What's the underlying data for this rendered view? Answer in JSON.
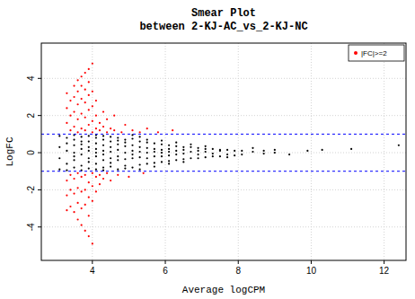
{
  "chart_data": {
    "type": "scatter",
    "title": "Smear Plot",
    "subtitle": "between 2-KJ-AC_vs_2-KJ-NC",
    "x_label": "Average logCPM",
    "y_label": "LogFC",
    "xlim": [
      2.6,
      12.6
    ],
    "ylim": [
      -5.8,
      5.9
    ],
    "xticks": [
      4,
      6,
      8,
      10,
      12
    ],
    "yticks": [
      -4,
      -2,
      0,
      2,
      4
    ],
    "grid": true,
    "legend": "topright",
    "marker": "circle",
    "reference_lines": [
      1,
      -1
    ],
    "series": [
      {
        "color": "#000000",
        "x": [
          3.1,
          3.1,
          3.1,
          3.1,
          3.3,
          3.3,
          3.3,
          3.3,
          3.3,
          3.5,
          3.5,
          3.5,
          3.5,
          3.5,
          3.5,
          3.5,
          3.7,
          3.7,
          3.7,
          3.7,
          3.7,
          3.7,
          3.7,
          3.9,
          3.9,
          3.9,
          3.9,
          3.9,
          3.9,
          3.9,
          4.1,
          4.1,
          4.1,
          4.1,
          4.1,
          4.1,
          4.1,
          4.1,
          4.3,
          4.3,
          4.3,
          4.3,
          4.3,
          4.3,
          4.3,
          4.3,
          4.5,
          4.5,
          4.5,
          4.5,
          4.5,
          4.5,
          4.5,
          4.7,
          4.7,
          4.7,
          4.7,
          4.7,
          4.7,
          4.7,
          4.9,
          4.9,
          4.9,
          4.9,
          4.9,
          4.9,
          4.9,
          5.1,
          5.1,
          5.1,
          5.1,
          5.1,
          5.1,
          5.1,
          5.3,
          5.3,
          5.3,
          5.3,
          5.3,
          5.3,
          5.3,
          5.5,
          5.5,
          5.5,
          5.5,
          5.5,
          5.5,
          5.7,
          5.7,
          5.7,
          5.7,
          5.7,
          5.7,
          5.9,
          5.9,
          5.9,
          5.9,
          5.9,
          5.9,
          6.1,
          6.1,
          6.1,
          6.1,
          6.1,
          6.1,
          6.3,
          6.3,
          6.3,
          6.3,
          6.3,
          6.5,
          6.5,
          6.5,
          6.5,
          6.5,
          6.7,
          6.7,
          6.7,
          6.7,
          6.9,
          6.9,
          6.9,
          6.9,
          7.1,
          7.1,
          7.1,
          7.1,
          7.3,
          7.3,
          7.3,
          7.5,
          7.5,
          7.5,
          7.7,
          7.7,
          7.7,
          7.9,
          7.9,
          8.1,
          8.1,
          8.4,
          8.4,
          8.7,
          8.7,
          9.0,
          9.0,
          9.4,
          9.9,
          10.3,
          11.1,
          12.4
        ],
        "values": [
          0.9,
          -0.9,
          0.3,
          -0.3,
          0.8,
          -0.6,
          0.1,
          0.5,
          -0.95,
          0.7,
          -0.8,
          0.0,
          0.4,
          -0.4,
          0.95,
          -0.2,
          0.6,
          -0.7,
          0.2,
          -0.1,
          0.85,
          -0.95,
          0.45,
          0.9,
          -0.5,
          0.3,
          -0.3,
          0.1,
          -0.85,
          0.6,
          0.8,
          -0.9,
          0.5,
          -0.6,
          0.2,
          -0.2,
          0.0,
          0.95,
          0.7,
          -0.8,
          0.4,
          -0.4,
          0.1,
          -0.1,
          0.9,
          -0.95,
          0.85,
          -0.75,
          0.3,
          -0.3,
          0.6,
          -0.55,
          0.05,
          0.8,
          -0.9,
          0.45,
          -0.4,
          0.15,
          -0.2,
          0.65,
          0.7,
          -0.7,
          0.35,
          -0.35,
          0.0,
          0.55,
          -0.85,
          0.75,
          -0.8,
          0.4,
          -0.3,
          0.1,
          -0.1,
          0.95,
          0.6,
          -0.65,
          0.3,
          -0.25,
          0.05,
          0.85,
          -0.9,
          0.55,
          -0.6,
          0.25,
          -0.3,
          0.0,
          0.7,
          0.5,
          -0.55,
          0.2,
          -0.2,
          0.05,
          -0.75,
          0.45,
          -0.5,
          0.15,
          -0.2,
          0.0,
          0.65,
          0.4,
          -0.45,
          0.2,
          -0.15,
          0.05,
          -0.6,
          0.35,
          -0.4,
          0.1,
          -0.1,
          0.55,
          0.3,
          -0.35,
          0.15,
          -0.05,
          -0.5,
          0.3,
          -0.3,
          0.05,
          0.45,
          0.25,
          -0.3,
          0.1,
          -0.1,
          0.2,
          -0.25,
          0.05,
          0.35,
          0.2,
          -0.2,
          -0.05,
          0.15,
          -0.2,
          0.1,
          0.15,
          -0.1,
          -0.25,
          0.1,
          -0.15,
          0.1,
          -0.1,
          0.05,
          0.25,
          0.1,
          -0.05,
          0.0,
          0.15,
          -0.1,
          0.1,
          0.15,
          0.2,
          0.4
        ]
      },
      {
        "name": "|FC|>=2",
        "color": "#ff0000",
        "x": [
          3.3,
          3.3,
          3.3,
          3.4,
          3.4,
          3.4,
          3.5,
          3.5,
          3.5,
          3.5,
          3.6,
          3.6,
          3.6,
          3.6,
          3.6,
          3.7,
          3.7,
          3.7,
          3.7,
          3.7,
          3.8,
          3.8,
          3.8,
          3.8,
          3.8,
          3.9,
          3.9,
          3.9,
          3.9,
          3.9,
          4.0,
          4.0,
          4.0,
          4.0,
          4.0,
          4.1,
          4.1,
          4.1,
          4.2,
          4.2,
          4.3,
          4.3,
          4.4,
          4.4,
          4.5,
          4.6,
          4.6,
          4.8,
          4.9,
          5.1,
          5.3,
          5.5,
          5.8,
          6.2,
          3.3,
          3.3,
          3.3,
          3.4,
          3.4,
          3.4,
          3.5,
          3.5,
          3.5,
          3.6,
          3.6,
          3.6,
          3.6,
          3.7,
          3.7,
          3.7,
          3.7,
          3.8,
          3.8,
          3.8,
          3.8,
          3.9,
          3.9,
          3.9,
          3.9,
          4.0,
          4.0,
          4.0,
          4.0,
          4.1,
          4.1,
          4.2,
          4.2,
          4.3,
          4.4,
          4.5,
          4.7,
          5.0,
          5.4
        ],
        "values": [
          1.6,
          2.4,
          3.2,
          1.2,
          2.0,
          2.8,
          1.4,
          2.2,
          3.0,
          3.6,
          1.1,
          1.8,
          2.6,
          3.3,
          3.9,
          1.3,
          2.1,
          2.9,
          3.6,
          4.1,
          1.2,
          1.9,
          2.7,
          3.4,
          4.3,
          1.5,
          2.3,
          3.1,
          3.8,
          4.5,
          1.1,
          1.7,
          2.5,
          3.3,
          4.8,
          1.3,
          2.0,
          2.8,
          1.2,
          1.6,
          1.4,
          2.2,
          1.1,
          1.8,
          1.3,
          1.2,
          2.0,
          1.1,
          1.5,
          1.2,
          1.1,
          1.3,
          1.1,
          1.2,
          -1.5,
          -2.3,
          -3.1,
          -1.2,
          -2.0,
          -2.9,
          -1.4,
          -2.2,
          -3.2,
          -1.1,
          -1.9,
          -2.7,
          -3.6,
          -1.3,
          -2.1,
          -3.0,
          -3.9,
          -1.2,
          -2.0,
          -2.8,
          -4.2,
          -1.6,
          -2.4,
          -3.4,
          -4.5,
          -1.1,
          -1.8,
          -2.6,
          -4.9,
          -1.3,
          -2.1,
          -1.2,
          -1.7,
          -1.4,
          -1.1,
          -1.5,
          -1.2,
          -1.3,
          -1.1
        ]
      }
    ]
  }
}
